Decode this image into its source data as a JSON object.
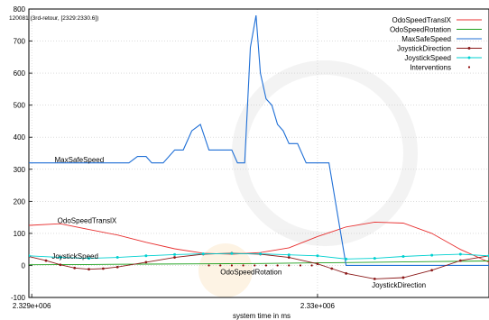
{
  "chart_data": {
    "type": "line",
    "title": "120081 (3rd-retour, [2329:2330.6])",
    "xlabel": "system time in ms",
    "ylabel": "",
    "xlim": [
      2328990,
      2330600
    ],
    "ylim": [
      -100,
      800
    ],
    "x_ticks": [
      {
        "value": 2329000,
        "label": "2.329e+006"
      },
      {
        "value": 2330000,
        "label": "2.33e+006"
      }
    ],
    "y_ticks": [
      -100,
      0,
      100,
      200,
      300,
      400,
      500,
      600,
      700,
      800
    ],
    "grid": true,
    "legend_position": "top-right",
    "series": [
      {
        "name": "OdoSpeedTranslX",
        "color": "#e83030",
        "marker": "none",
        "x": [
          2328990,
          2329100,
          2329200,
          2329300,
          2329400,
          2329500,
          2329600,
          2329700,
          2329800,
          2329900,
          2330000,
          2330100,
          2330200,
          2330300,
          2330400,
          2330500,
          2330600
        ],
        "y": [
          125,
          130,
          112,
          95,
          72,
          52,
          38,
          35,
          40,
          55,
          90,
          120,
          135,
          132,
          100,
          50,
          10
        ]
      },
      {
        "name": "OdoSpeedRotation",
        "color": "#1ea01e",
        "marker": "none",
        "x": [
          2328990,
          2329200,
          2329400,
          2329600,
          2329800,
          2330000,
          2330200,
          2330400,
          2330600
        ],
        "y": [
          2,
          3,
          4,
          5,
          6,
          8,
          10,
          12,
          14
        ]
      },
      {
        "name": "MaxSafeSpeed",
        "color": "#1f6fd6",
        "marker": "none",
        "x": [
          2328990,
          2329340,
          2329370,
          2329400,
          2329420,
          2329460,
          2329500,
          2329530,
          2329560,
          2329590,
          2329620,
          2329660,
          2329700,
          2329720,
          2329745,
          2329765,
          2329785,
          2329800,
          2329820,
          2329840,
          2329860,
          2329880,
          2329900,
          2329930,
          2329960,
          2329990,
          2330040,
          2330100,
          2330200,
          2330300,
          2330400,
          2330500,
          2330600
        ],
        "y": [
          320,
          320,
          340,
          340,
          320,
          320,
          360,
          360,
          420,
          440,
          360,
          360,
          360,
          320,
          320,
          680,
          780,
          600,
          520,
          500,
          440,
          420,
          380,
          380,
          320,
          320,
          320,
          0,
          0,
          0,
          0,
          0,
          0
        ]
      },
      {
        "name": "JoystickDirection",
        "color": "#8b1a1a",
        "marker": "circle",
        "x": [
          2328990,
          2329050,
          2329100,
          2329150,
          2329200,
          2329250,
          2329300,
          2329400,
          2329500,
          2329600,
          2329700,
          2329800,
          2329900,
          2330000,
          2330050,
          2330100,
          2330200,
          2330300,
          2330400,
          2330500,
          2330600
        ],
        "y": [
          28,
          15,
          2,
          -8,
          -12,
          -10,
          -5,
          10,
          25,
          35,
          38,
          35,
          25,
          5,
          -10,
          -25,
          -42,
          -38,
          -15,
          15,
          30
        ]
      },
      {
        "name": "JoystickSpeed",
        "color": "#00d0d0",
        "marker": "star",
        "x": [
          2328990,
          2329100,
          2329200,
          2329300,
          2329400,
          2329500,
          2329600,
          2329700,
          2329800,
          2329900,
          2330000,
          2330100,
          2330200,
          2330300,
          2330400,
          2330500,
          2330600
        ],
        "y": [
          30,
          25,
          22,
          25,
          30,
          34,
          36,
          37,
          36,
          33,
          30,
          20,
          22,
          28,
          32,
          35,
          30
        ]
      },
      {
        "name": "Interventions",
        "color": "#8b0000",
        "marker": "dot",
        "x": [
          2329620,
          2329660,
          2329700,
          2329740,
          2329780,
          2329820,
          2329860,
          2329900,
          2329940,
          2329980
        ],
        "y": [
          0,
          0,
          0,
          0,
          0,
          0,
          0,
          0,
          0,
          0
        ]
      }
    ],
    "annotations": [
      {
        "text": "MaxSafeSpeed",
        "x": 2329080,
        "y": 330
      },
      {
        "text": "OdoSpeedTranslX",
        "x": 2329090,
        "y": 140
      },
      {
        "text": "JoystickSpeed",
        "x": 2329070,
        "y": 30
      },
      {
        "text": "OdoSpeedRotation",
        "x": 2329660,
        "y": -20
      },
      {
        "text": "JoystickDirection",
        "x": 2330190,
        "y": -60
      }
    ]
  }
}
